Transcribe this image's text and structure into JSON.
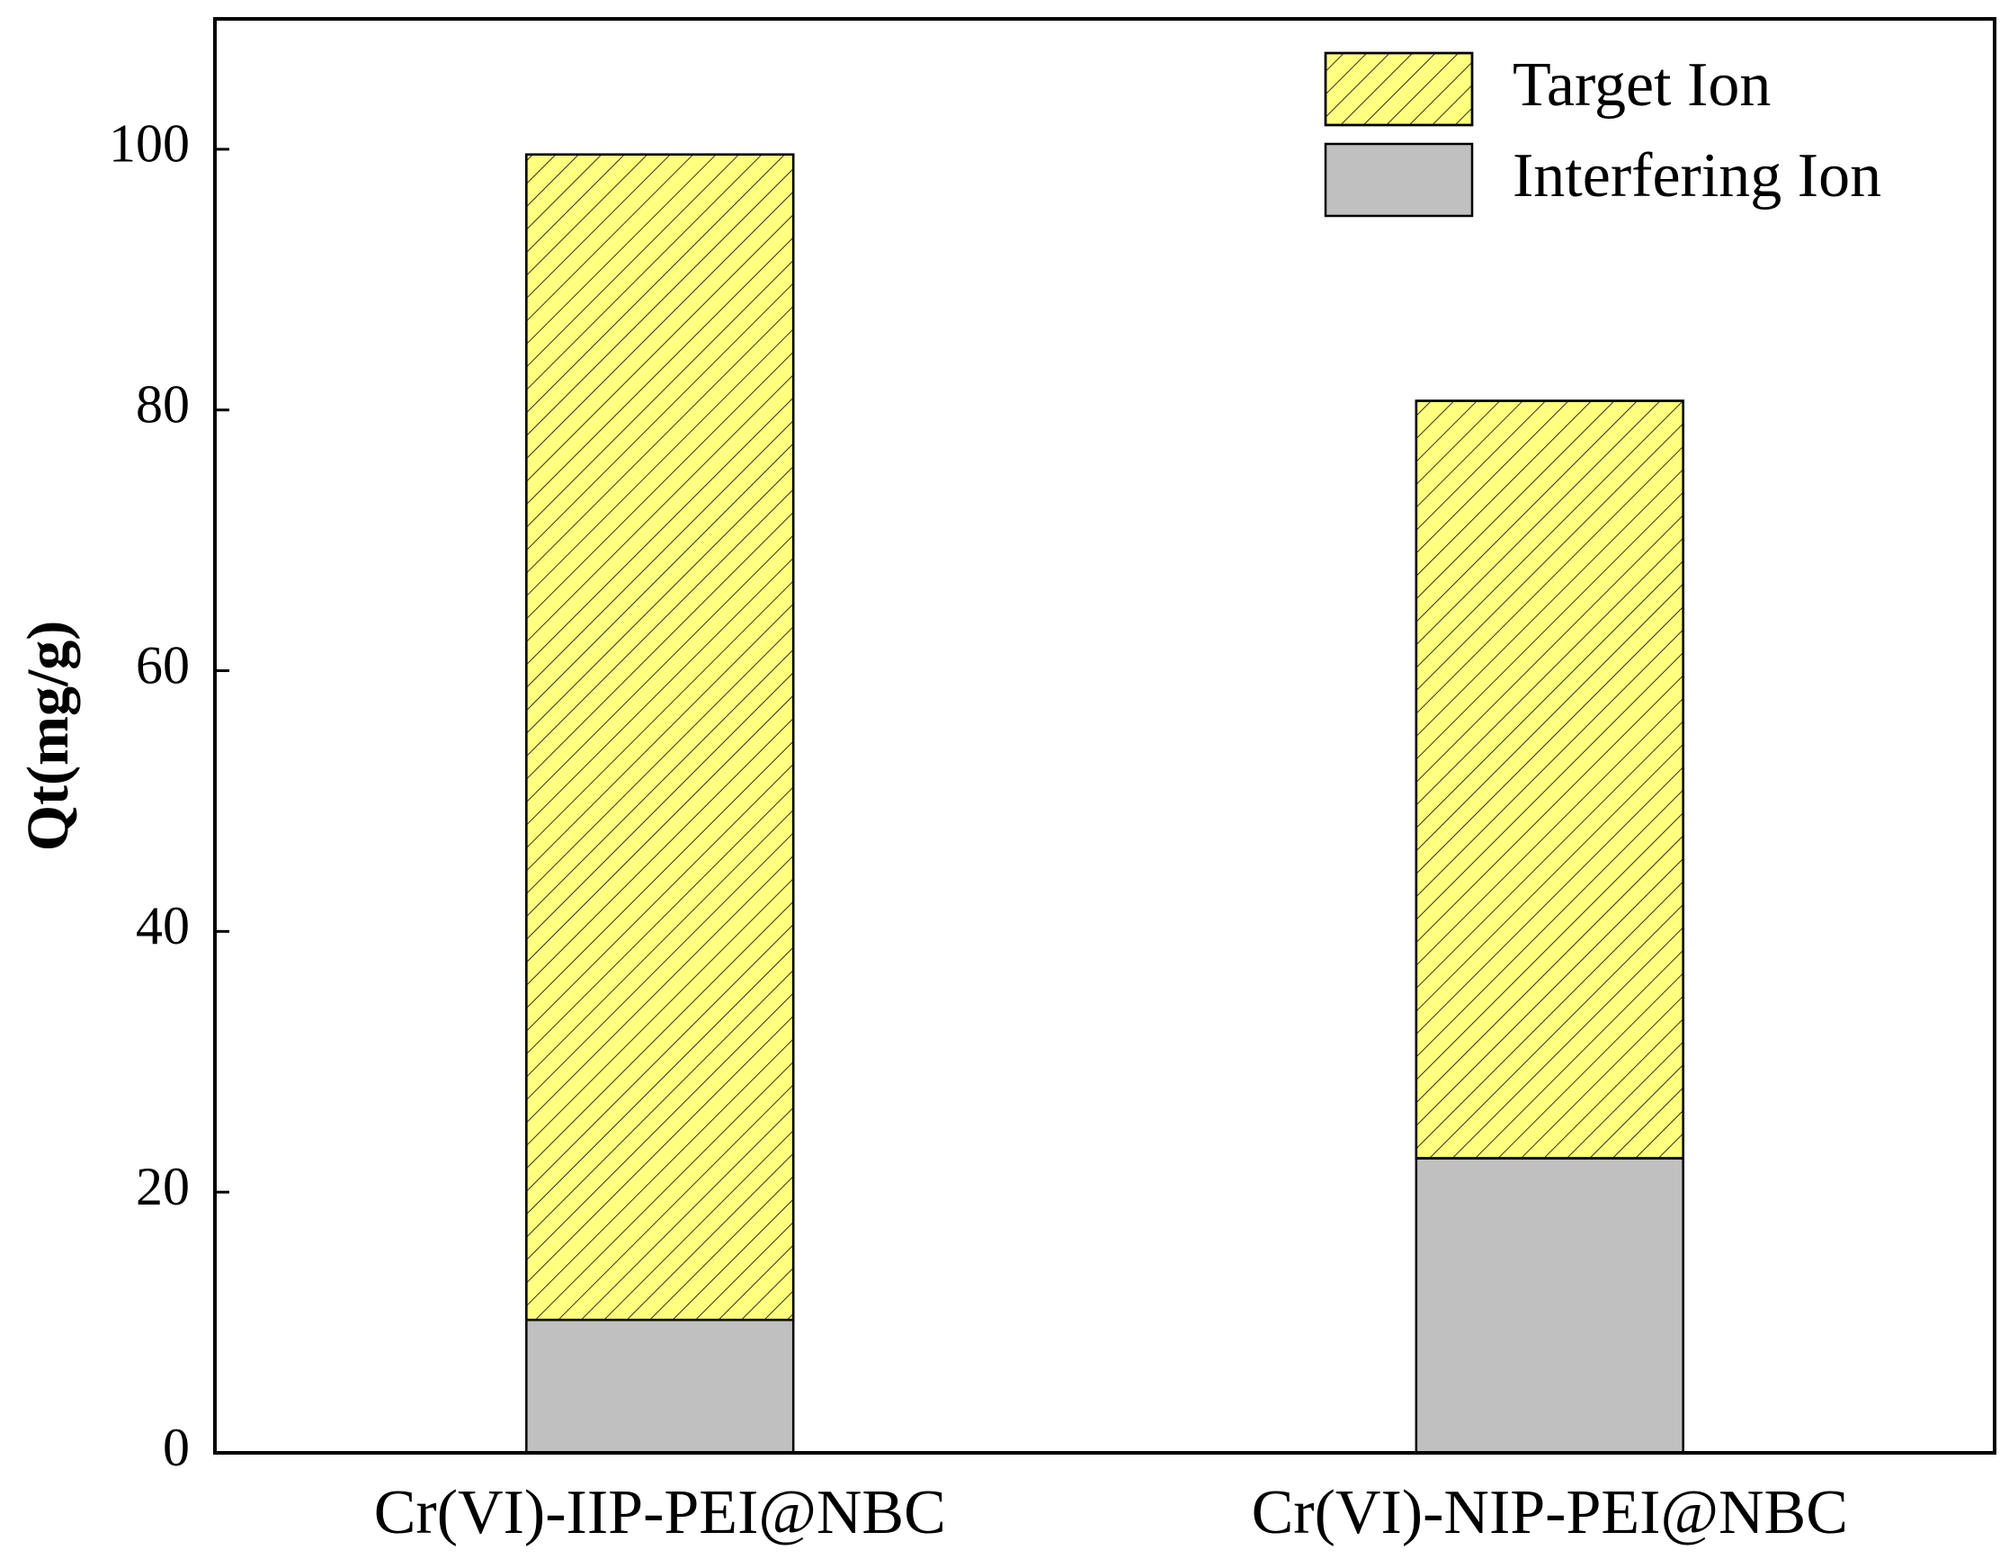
{
  "chart_data": {
    "type": "stacked_bar",
    "y_label": "Qt(mg/g)",
    "categories": [
      "Cr(VI)-IIP-PEI@NBC",
      "Cr(VI)-NIP-PEI@NBC"
    ],
    "series": [
      {
        "name": "Interfering Ion",
        "color": "#c0c0c0",
        "values": [
          10.2,
          22.6
        ]
      },
      {
        "name": "Target Ion",
        "color": "#ffff80",
        "hatch": "/",
        "values": [
          89.4,
          58.1
        ]
      }
    ],
    "ylim": [
      0,
      110
    ],
    "yticks": [
      0,
      20,
      40,
      60,
      80,
      100
    ],
    "legend": "upper right"
  }
}
